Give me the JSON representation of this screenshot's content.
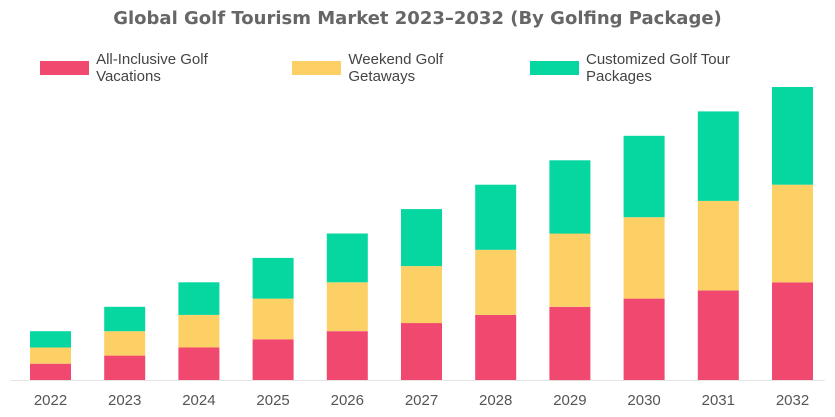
{
  "chart_data": {
    "type": "bar",
    "stacked": true,
    "title": "Global Golf Tourism Market 2023–2032 (By Golfing Package)",
    "categories": [
      "2022",
      "2023",
      "2024",
      "2025",
      "2026",
      "2027",
      "2028",
      "2029",
      "2030",
      "2031",
      "2032"
    ],
    "series": [
      {
        "name": "All-Inclusive Golf Vacations",
        "color": "#f0486e",
        "values": [
          2,
          3,
          4,
          5,
          6,
          7,
          8,
          9,
          10,
          11,
          12
        ]
      },
      {
        "name": "Weekend Golf Getaways",
        "color": "#fdd066",
        "values": [
          2,
          3,
          4,
          5,
          6,
          7,
          8,
          9,
          10,
          11,
          12
        ]
      },
      {
        "name": "Customized Golf Tour Packages",
        "color": "#06d6a0",
        "values": [
          2,
          3,
          4,
          5,
          6,
          7,
          8,
          9,
          10,
          11,
          12
        ]
      }
    ],
    "xlabel": "",
    "ylabel": "",
    "ylim": [
      0,
      36
    ],
    "grid": false,
    "legend": "top"
  }
}
